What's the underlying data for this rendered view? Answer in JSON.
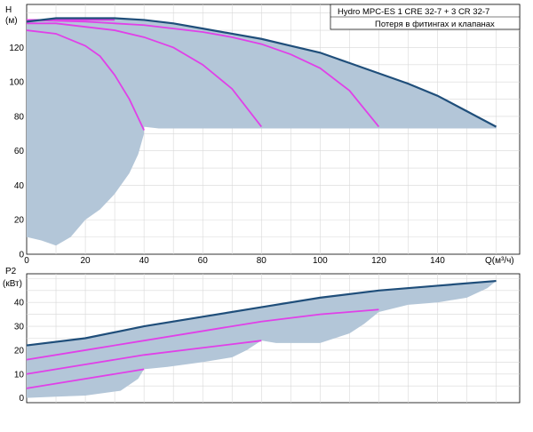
{
  "legend": {
    "line1": "Hydro MPC-ES 1 CRE 32-7  +  3 CR 32-7",
    "line2": "Потеря в фитингах и клапанах"
  },
  "chart_data": [
    {
      "type": "line",
      "name": "head",
      "ylabel": "H",
      "yunit": "(м)",
      "xlabel": "Q(м³/ч)",
      "xlim": [
        0,
        168
      ],
      "ylim": [
        0,
        145
      ],
      "xticks": [
        0,
        20,
        40,
        60,
        80,
        100,
        120,
        140
      ],
      "yticks": [
        0,
        20,
        40,
        60,
        80,
        100,
        120
      ],
      "grid": true,
      "colors": {
        "envelope": "#1f4e7a",
        "curve": "#e040e8",
        "area": "#b3c6d8"
      },
      "area_polygon": [
        [
          0,
          10
        ],
        [
          5,
          8
        ],
        [
          10,
          5
        ],
        [
          15,
          10
        ],
        [
          20,
          20
        ],
        [
          25,
          26
        ],
        [
          30,
          35
        ],
        [
          35,
          47
        ],
        [
          38,
          58
        ],
        [
          40,
          70
        ],
        [
          40,
          74
        ],
        [
          45,
          73
        ],
        [
          50,
          73
        ],
        [
          60,
          73
        ],
        [
          70,
          73
        ],
        [
          80,
          73
        ],
        [
          100,
          73
        ],
        [
          120,
          73
        ],
        [
          140,
          73
        ],
        [
          160,
          73
        ],
        [
          160,
          74
        ],
        [
          150,
          83
        ],
        [
          140,
          92
        ],
        [
          130,
          99
        ],
        [
          120,
          105
        ],
        [
          110,
          111
        ],
        [
          100,
          117
        ],
        [
          90,
          121
        ],
        [
          80,
          125
        ],
        [
          70,
          128
        ],
        [
          60,
          131
        ],
        [
          50,
          134
        ],
        [
          40,
          136
        ],
        [
          30,
          137
        ],
        [
          20,
          137
        ],
        [
          10,
          137
        ],
        [
          0,
          135
        ]
      ],
      "envelope": [
        [
          0,
          135
        ],
        [
          10,
          137
        ],
        [
          20,
          137
        ],
        [
          30,
          137
        ],
        [
          40,
          136
        ],
        [
          50,
          134
        ],
        [
          60,
          131
        ],
        [
          70,
          128
        ],
        [
          80,
          125
        ],
        [
          90,
          121
        ],
        [
          100,
          117
        ],
        [
          110,
          111
        ],
        [
          120,
          105
        ],
        [
          130,
          99
        ],
        [
          140,
          92
        ],
        [
          150,
          83
        ],
        [
          160,
          74
        ]
      ],
      "curves": [
        [
          [
            0,
            130
          ],
          [
            10,
            128
          ],
          [
            20,
            121
          ],
          [
            25,
            115
          ],
          [
            30,
            104
          ],
          [
            35,
            90
          ],
          [
            40,
            72
          ]
        ],
        [
          [
            0,
            134
          ],
          [
            10,
            134
          ],
          [
            20,
            132
          ],
          [
            30,
            130
          ],
          [
            40,
            126
          ],
          [
            50,
            120
          ],
          [
            60,
            110
          ],
          [
            70,
            96
          ],
          [
            80,
            74
          ]
        ],
        [
          [
            0,
            136
          ],
          [
            20,
            135
          ],
          [
            40,
            133
          ],
          [
            60,
            129
          ],
          [
            70,
            126
          ],
          [
            80,
            122
          ],
          [
            90,
            116
          ],
          [
            100,
            108
          ],
          [
            110,
            95
          ],
          [
            120,
            74
          ]
        ],
        [
          [
            0,
            136
          ],
          [
            10,
            136
          ],
          [
            20,
            136
          ],
          [
            30,
            136
          ]
        ]
      ]
    },
    {
      "type": "line",
      "name": "power",
      "ylabel": "P2",
      "yunit": "(кВт)",
      "xlim": [
        0,
        168
      ],
      "ylim": [
        -2,
        52
      ],
      "yticks": [
        0,
        10,
        20,
        30,
        40
      ],
      "grid": true,
      "colors": {
        "envelope": "#1f4e7a",
        "curve": "#e040e8",
        "area": "#b3c6d8"
      },
      "area_polygon": [
        [
          0,
          22
        ],
        [
          20,
          25
        ],
        [
          40,
          30
        ],
        [
          60,
          34
        ],
        [
          80,
          38
        ],
        [
          100,
          42
        ],
        [
          120,
          45
        ],
        [
          140,
          47
        ],
        [
          160,
          49
        ],
        [
          157,
          46
        ],
        [
          150,
          42
        ],
        [
          140,
          40
        ],
        [
          130,
          39
        ],
        [
          120,
          36
        ],
        [
          115,
          31
        ],
        [
          110,
          27
        ],
        [
          100,
          23
        ],
        [
          85,
          23
        ],
        [
          80,
          24
        ],
        [
          75,
          20
        ],
        [
          70,
          17
        ],
        [
          60,
          15
        ],
        [
          48,
          13
        ],
        [
          40,
          12
        ],
        [
          38,
          8
        ],
        [
          32,
          3
        ],
        [
          20,
          1
        ],
        [
          10,
          0.5
        ],
        [
          0,
          0
        ]
      ],
      "envelope": [
        [
          0,
          22
        ],
        [
          20,
          25
        ],
        [
          40,
          30
        ],
        [
          60,
          34
        ],
        [
          80,
          38
        ],
        [
          100,
          42
        ],
        [
          120,
          45
        ],
        [
          140,
          47
        ],
        [
          160,
          49
        ]
      ],
      "curves": [
        [
          [
            0,
            4
          ],
          [
            20,
            8
          ],
          [
            40,
            12
          ]
        ],
        [
          [
            0,
            10
          ],
          [
            20,
            14
          ],
          [
            40,
            18
          ],
          [
            60,
            21
          ],
          [
            80,
            24
          ]
        ],
        [
          [
            0,
            16
          ],
          [
            20,
            20
          ],
          [
            40,
            24
          ],
          [
            60,
            28
          ],
          [
            80,
            32
          ],
          [
            100,
            35
          ],
          [
            120,
            37
          ]
        ]
      ]
    }
  ]
}
